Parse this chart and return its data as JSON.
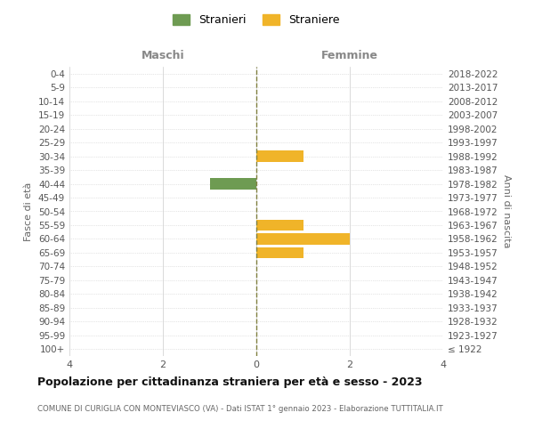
{
  "age_groups": [
    "0-4",
    "5-9",
    "10-14",
    "15-19",
    "20-24",
    "25-29",
    "30-34",
    "35-39",
    "40-44",
    "45-49",
    "50-54",
    "55-59",
    "60-64",
    "65-69",
    "70-74",
    "75-79",
    "80-84",
    "85-89",
    "90-94",
    "95-99",
    "100+"
  ],
  "birth_years": [
    "2018-2022",
    "2013-2017",
    "2008-2012",
    "2003-2007",
    "1998-2002",
    "1993-1997",
    "1988-1992",
    "1983-1987",
    "1978-1982",
    "1973-1977",
    "1968-1972",
    "1963-1967",
    "1958-1962",
    "1953-1957",
    "1948-1952",
    "1943-1947",
    "1938-1942",
    "1933-1937",
    "1928-1932",
    "1923-1927",
    "≤ 1922"
  ],
  "maschi": [
    0,
    0,
    0,
    0,
    0,
    0,
    0,
    0,
    1,
    0,
    0,
    0,
    0,
    0,
    0,
    0,
    0,
    0,
    0,
    0,
    0
  ],
  "femmine": [
    0,
    0,
    0,
    0,
    0,
    0,
    1,
    0,
    0,
    0,
    0,
    1,
    2,
    1,
    0,
    0,
    0,
    0,
    0,
    0,
    0
  ],
  "male_color": "#6e9b52",
  "female_color": "#f0b429",
  "center_line_color": "#808040",
  "grid_color": "#cccccc",
  "background_color": "#ffffff",
  "title": "Popolazione per cittadinanza straniera per età e sesso - 2023",
  "subtitle": "COMUNE DI CURIGLIA CON MONTEVIASCO (VA) - Dati ISTAT 1° gennaio 2023 - Elaborazione TUTTITALIA.IT",
  "ylabel_left": "Fasce di età",
  "ylabel_right": "Anni di nascita",
  "xlabel_maschi": "Maschi",
  "xlabel_femmine": "Femmine",
  "legend_male": "Stranieri",
  "legend_female": "Straniere",
  "xlim": 4,
  "bar_height": 0.8
}
